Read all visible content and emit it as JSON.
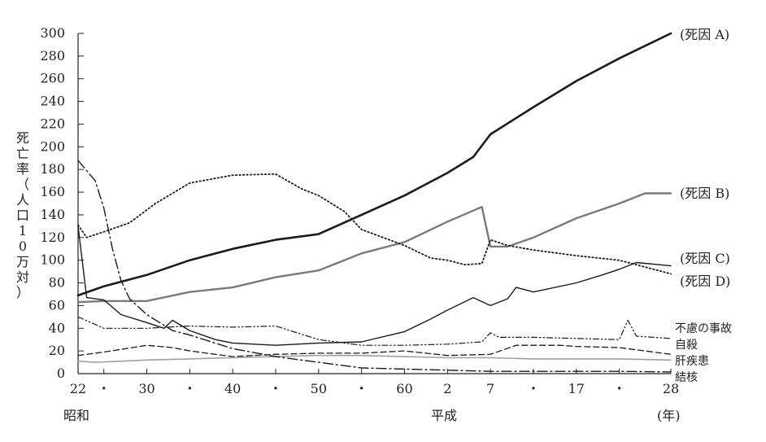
{
  "chart_data": {
    "type": "line",
    "ylabel": "死亡率（人口10万対）",
    "ylim": [
      0,
      300
    ],
    "yticks": [
      0,
      20,
      40,
      60,
      80,
      100,
      120,
      140,
      160,
      180,
      200,
      220,
      240,
      260,
      280,
      300
    ],
    "x_ticks": [
      {
        "year": 1947,
        "label": "22"
      },
      {
        "year": 1950,
        "label": "・"
      },
      {
        "year": 1955,
        "label": "30"
      },
      {
        "year": 1960,
        "label": "・"
      },
      {
        "year": 1965,
        "label": "40"
      },
      {
        "year": 1970,
        "label": "・"
      },
      {
        "year": 1975,
        "label": "50"
      },
      {
        "year": 1980,
        "label": "・"
      },
      {
        "year": 1985,
        "label": "60"
      },
      {
        "year": 1990,
        "label": "2"
      },
      {
        "year": 1995,
        "label": "7"
      },
      {
        "year": 2000,
        "label": "・"
      },
      {
        "year": 2005,
        "label": "17"
      },
      {
        "year": 2010,
        "label": "・"
      },
      {
        "year": 2016,
        "label": "28"
      }
    ],
    "era_labels": {
      "showa": "昭和",
      "heisei": "平成",
      "year_unit": "(年)"
    },
    "series": [
      {
        "name": "(死因 A)",
        "style": "solid-thick",
        "color": "#1a1a1a",
        "points": [
          [
            1947,
            69
          ],
          [
            1950,
            77
          ],
          [
            1955,
            87
          ],
          [
            1960,
            100
          ],
          [
            1965,
            110
          ],
          [
            1970,
            118
          ],
          [
            1975,
            123
          ],
          [
            1980,
            140
          ],
          [
            1985,
            157
          ],
          [
            1990,
            177
          ],
          [
            1993,
            191
          ],
          [
            1995,
            211
          ],
          [
            2000,
            235
          ],
          [
            2005,
            258
          ],
          [
            2010,
            278
          ],
          [
            2016,
            300
          ]
        ]
      },
      {
        "name": "(死因 B)",
        "style": "solid-gray",
        "color": "#7a7a7a",
        "points": [
          [
            1947,
            63
          ],
          [
            1950,
            64
          ],
          [
            1955,
            64
          ],
          [
            1960,
            72
          ],
          [
            1965,
            76
          ],
          [
            1970,
            85
          ],
          [
            1975,
            91
          ],
          [
            1980,
            106
          ],
          [
            1985,
            116
          ],
          [
            1990,
            134
          ],
          [
            1994,
            147
          ],
          [
            1995,
            112
          ],
          [
            1997,
            112
          ],
          [
            2000,
            120
          ],
          [
            2005,
            137
          ],
          [
            2010,
            150
          ],
          [
            2013,
            159
          ],
          [
            2016,
            159
          ]
        ]
      },
      {
        "name": "(死因 C)",
        "style": "dotted",
        "color": "#1a1a1a",
        "points": [
          [
            1947,
            131
          ],
          [
            1948,
            120
          ],
          [
            1950,
            125
          ],
          [
            1953,
            133
          ],
          [
            1956,
            150
          ],
          [
            1960,
            168
          ],
          [
            1965,
            175
          ],
          [
            1970,
            176
          ],
          [
            1973,
            163
          ],
          [
            1975,
            157
          ],
          [
            1978,
            143
          ],
          [
            1980,
            127
          ],
          [
            1985,
            113
          ],
          [
            1988,
            102
          ],
          [
            1990,
            100
          ],
          [
            1992,
            96
          ],
          [
            1994,
            97
          ],
          [
            1995,
            118
          ],
          [
            1997,
            113
          ],
          [
            2000,
            109
          ],
          [
            2005,
            104
          ],
          [
            2010,
            100
          ],
          [
            2016,
            88
          ]
        ]
      },
      {
        "name": "(死因 D)",
        "style": "solid-thin",
        "color": "#1a1a1a",
        "points": [
          [
            1947,
            130
          ],
          [
            1948,
            67
          ],
          [
            1950,
            65
          ],
          [
            1952,
            52
          ],
          [
            1955,
            45
          ],
          [
            1957,
            40
          ],
          [
            1958,
            47
          ],
          [
            1960,
            38
          ],
          [
            1963,
            30
          ],
          [
            1965,
            27
          ],
          [
            1970,
            25
          ],
          [
            1975,
            27
          ],
          [
            1980,
            28
          ],
          [
            1985,
            37
          ],
          [
            1988,
            48
          ],
          [
            1990,
            56
          ],
          [
            1993,
            67
          ],
          [
            1995,
            60
          ],
          [
            1997,
            66
          ],
          [
            1998,
            76
          ],
          [
            2000,
            72
          ],
          [
            2005,
            80
          ],
          [
            2008,
            87
          ],
          [
            2010,
            92
          ],
          [
            2012,
            98
          ],
          [
            2016,
            95
          ]
        ]
      },
      {
        "name": "不慮の事故",
        "style": "dash-dot-dot",
        "color": "#1a1a1a",
        "points": [
          [
            1947,
            50
          ],
          [
            1950,
            40
          ],
          [
            1955,
            40
          ],
          [
            1960,
            42
          ],
          [
            1965,
            41
          ],
          [
            1970,
            42
          ],
          [
            1975,
            30
          ],
          [
            1980,
            25
          ],
          [
            1985,
            25
          ],
          [
            1990,
            26
          ],
          [
            1994,
            28
          ],
          [
            1995,
            36
          ],
          [
            1996,
            32
          ],
          [
            2000,
            32
          ],
          [
            2005,
            31
          ],
          [
            2010,
            30
          ],
          [
            2011,
            47
          ],
          [
            2012,
            33
          ],
          [
            2016,
            31
          ]
        ]
      },
      {
        "name": "自殺",
        "style": "dashed",
        "color": "#1a1a1a",
        "points": [
          [
            1947,
            16
          ],
          [
            1950,
            19
          ],
          [
            1955,
            25
          ],
          [
            1958,
            23
          ],
          [
            1960,
            20
          ],
          [
            1965,
            15
          ],
          [
            1970,
            17
          ],
          [
            1975,
            18
          ],
          [
            1980,
            18
          ],
          [
            1985,
            20
          ],
          [
            1990,
            16
          ],
          [
            1995,
            17
          ],
          [
            1998,
            25
          ],
          [
            2003,
            25
          ],
          [
            2005,
            24
          ],
          [
            2010,
            23
          ],
          [
            2016,
            17
          ]
        ]
      },
      {
        "name": "肝疾患",
        "style": "solid-lightgray",
        "color": "#a0a0a0",
        "points": [
          [
            1947,
            11
          ],
          [
            1949,
            10
          ],
          [
            1955,
            12
          ],
          [
            1960,
            13
          ],
          [
            1965,
            14
          ],
          [
            1970,
            15
          ],
          [
            1975,
            16
          ],
          [
            1980,
            16
          ],
          [
            1985,
            15
          ],
          [
            1990,
            14
          ],
          [
            1995,
            14
          ],
          [
            2000,
            13
          ],
          [
            2005,
            13
          ],
          [
            2010,
            13
          ],
          [
            2016,
            12
          ]
        ]
      },
      {
        "name": "結核",
        "style": "dash-dot",
        "color": "#1a1a1a",
        "points": [
          [
            1947,
            188
          ],
          [
            1949,
            170
          ],
          [
            1950,
            146
          ],
          [
            1951,
            110
          ],
          [
            1952,
            82
          ],
          [
            1953,
            66
          ],
          [
            1955,
            52
          ],
          [
            1958,
            38
          ],
          [
            1960,
            34
          ],
          [
            1965,
            22
          ],
          [
            1970,
            15
          ],
          [
            1975,
            10
          ],
          [
            1980,
            5
          ],
          [
            1985,
            4
          ],
          [
            1990,
            3
          ],
          [
            1995,
            2
          ],
          [
            2000,
            2
          ],
          [
            2005,
            2
          ],
          [
            2010,
            2
          ],
          [
            2016,
            1.5
          ]
        ]
      }
    ]
  }
}
